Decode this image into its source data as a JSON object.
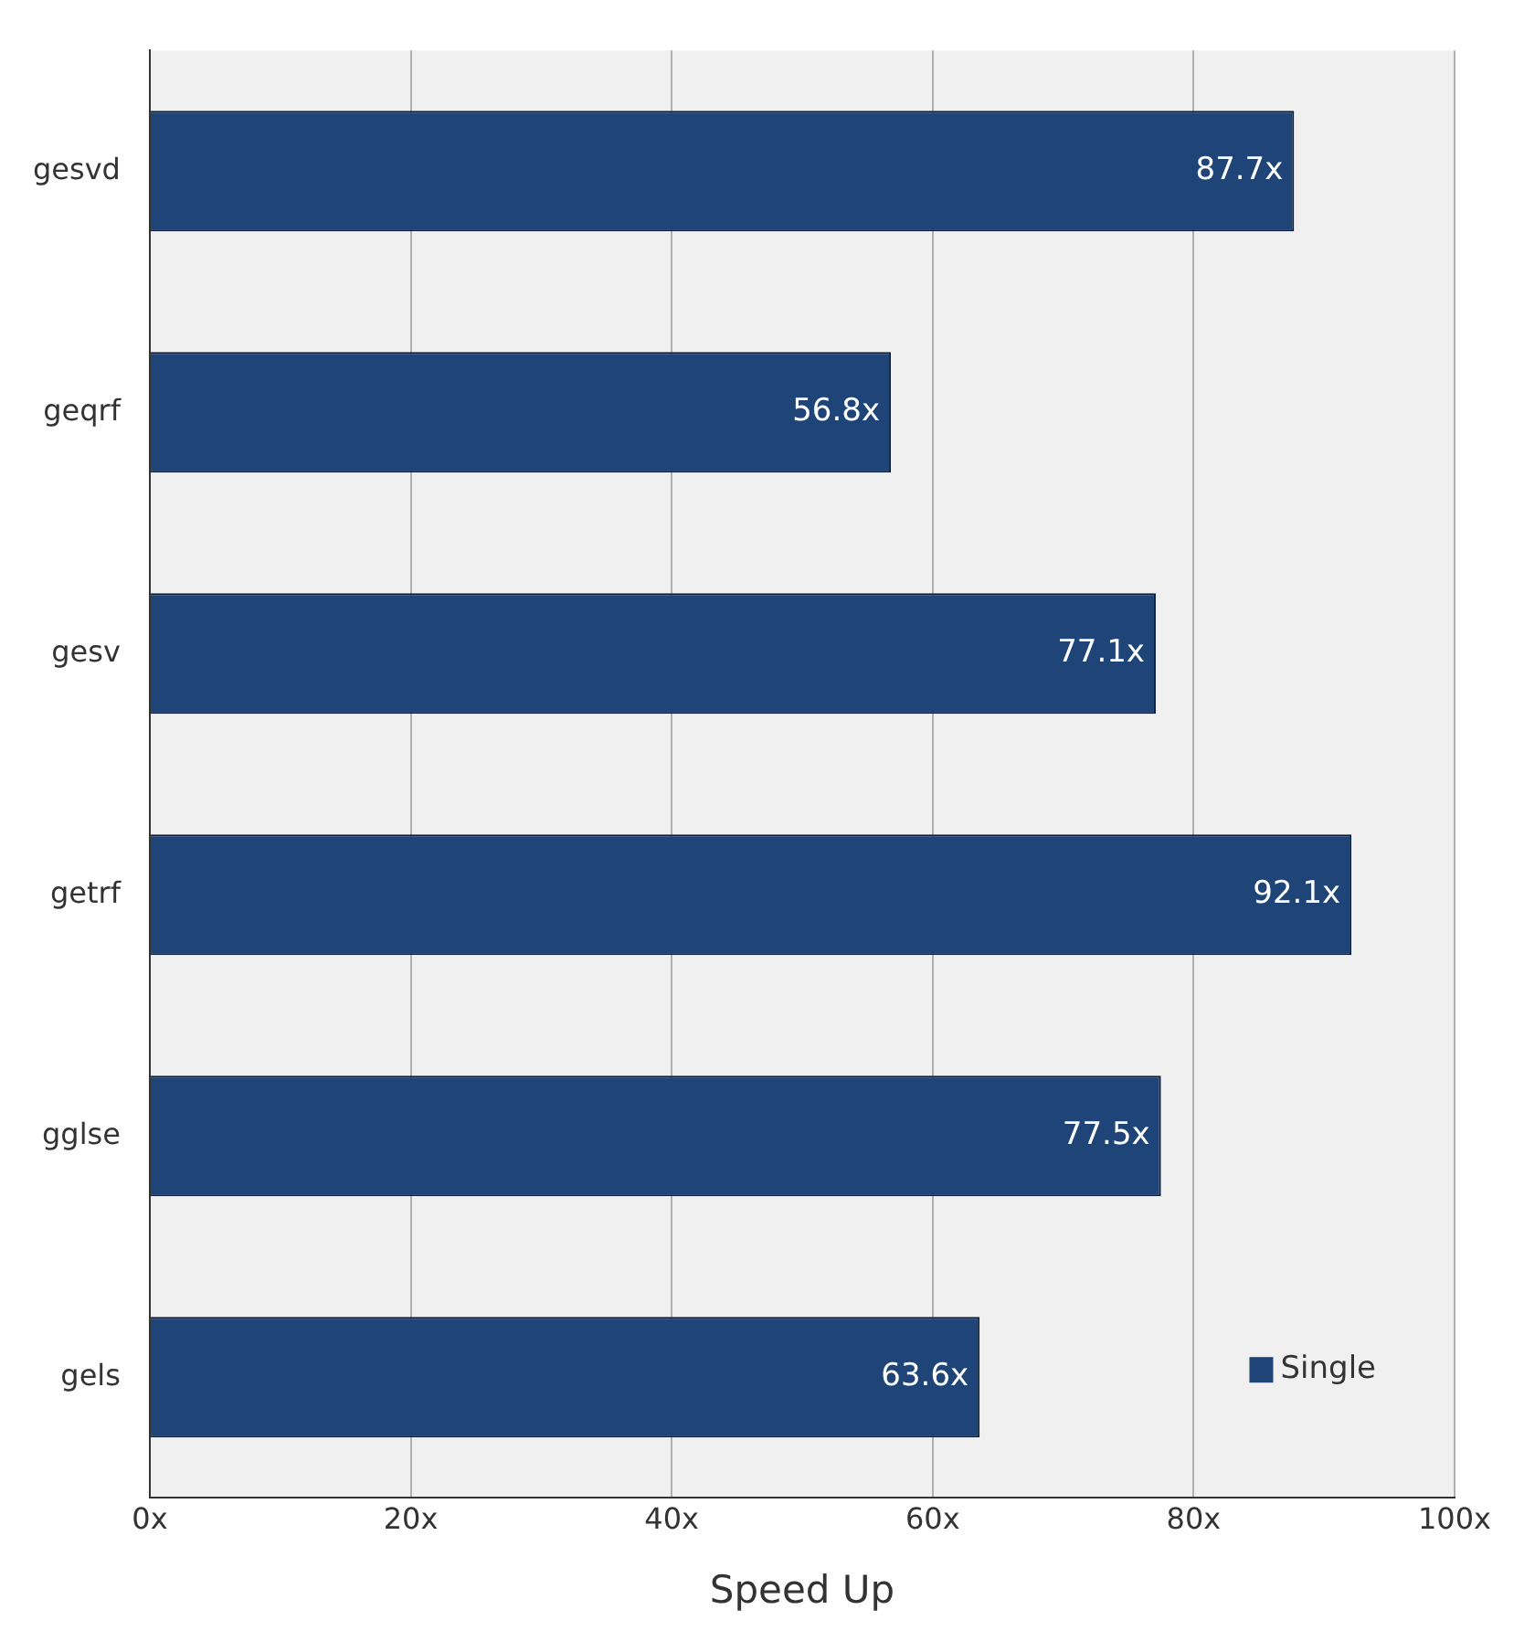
{
  "chart_data": {
    "type": "bar",
    "orientation": "horizontal",
    "xlabel": "Speed Up",
    "categories": [
      "gesvd",
      "geqrf",
      "gesv",
      "getrf",
      "gglse",
      "gels"
    ],
    "series": [
      {
        "name": "Single",
        "color": "#1f4477",
        "values": [
          87.7,
          56.8,
          77.1,
          92.1,
          77.5,
          63.6
        ],
        "value_labels": [
          "87.7x",
          "56.8x",
          "77.1x",
          "92.1x",
          "77.5x",
          "63.6x"
        ]
      }
    ],
    "xlim": [
      0,
      100
    ],
    "xticks": [
      {
        "value": 0,
        "label": "0x"
      },
      {
        "value": 20,
        "label": "20x"
      },
      {
        "value": 40,
        "label": "40x"
      },
      {
        "value": 60,
        "label": "60x"
      },
      {
        "value": 80,
        "label": "80x"
      },
      {
        "value": 100,
        "label": "100x"
      }
    ],
    "grid": "x",
    "legend": "bottom right"
  }
}
